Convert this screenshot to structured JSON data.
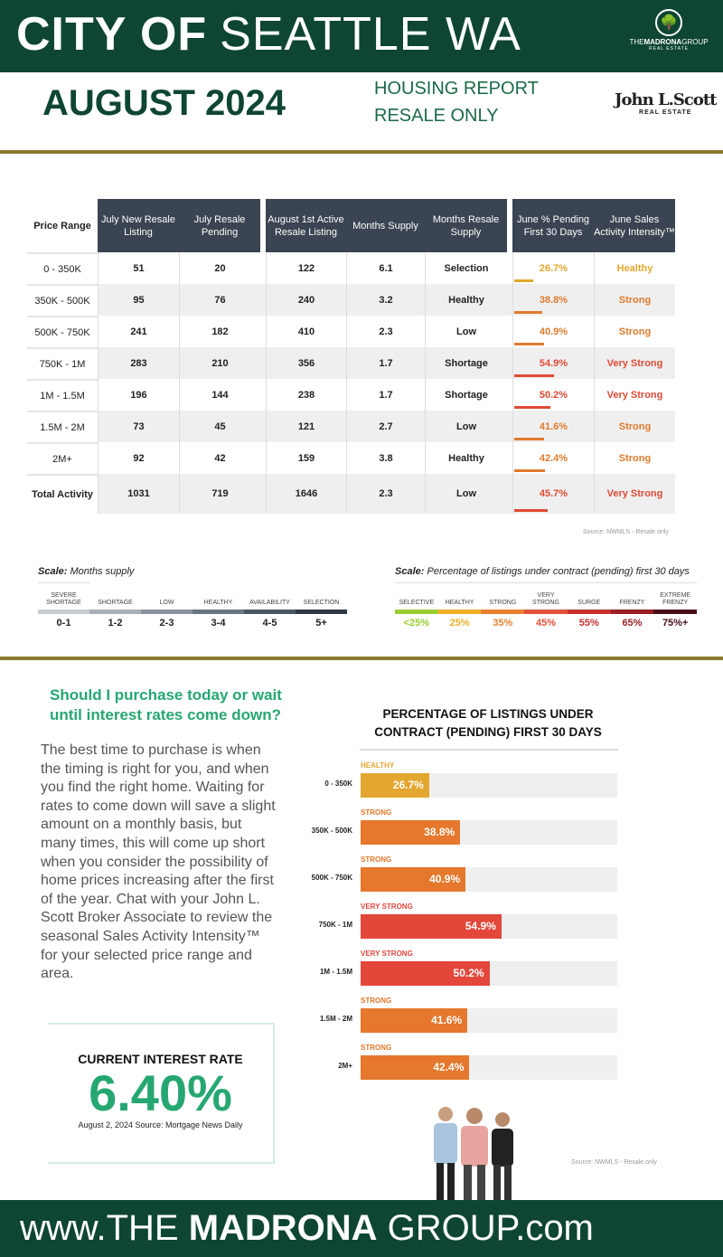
{
  "header": {
    "title_bold": "CITY OF",
    "title_light": "SEATTLE WA",
    "month": "AUGUST 2024",
    "sub1": "HOUSING REPORT",
    "sub2": "RESALE ONLY",
    "madrona_logo": {
      "name_thin": "THE",
      "name_bold": "MADRONA",
      "name_end": "GROUP",
      "tag": "REAL ESTATE"
    },
    "jls_logo": {
      "name": "John L.Scott",
      "tag": "REAL ESTATE"
    }
  },
  "table": {
    "headers": [
      "Price Range",
      "July New Resale Listing",
      "July Resale Pending",
      "August 1st Active Resale Listing",
      "Months Supply",
      "Months Resale Supply",
      "June % Pending First 30 Days",
      "June Sales Activity Intensity™"
    ],
    "rows": [
      {
        "range": "0 - 350K",
        "new": "51",
        "pending": "20",
        "active": "122",
        "months": "6.1",
        "supply": "Selection",
        "pct": "26.7%",
        "pct_value": 26.7,
        "intensity": "Healthy",
        "color": "#e0a82e"
      },
      {
        "range": "350K - 500K",
        "new": "95",
        "pending": "76",
        "active": "240",
        "months": "3.2",
        "supply": "Healthy",
        "pct": "38.8%",
        "pct_value": 38.8,
        "intensity": "Strong",
        "color": "#e07a2e"
      },
      {
        "range": "500K - 750K",
        "new": "241",
        "pending": "182",
        "active": "410",
        "months": "2.3",
        "supply": "Low",
        "pct": "40.9%",
        "pct_value": 40.9,
        "intensity": "Strong",
        "color": "#e07a2e"
      },
      {
        "range": "750K - 1M",
        "new": "283",
        "pending": "210",
        "active": "356",
        "months": "1.7",
        "supply": "Shortage",
        "pct": "54.9%",
        "pct_value": 54.9,
        "intensity": "Very Strong",
        "color": "#e04a35"
      },
      {
        "range": "1M - 1.5M",
        "new": "196",
        "pending": "144",
        "active": "238",
        "months": "1.7",
        "supply": "Shortage",
        "pct": "50.2%",
        "pct_value": 50.2,
        "intensity": "Very Strong",
        "color": "#e04a35"
      },
      {
        "range": "1.5M - 2M",
        "new": "73",
        "pending": "45",
        "active": "121",
        "months": "2.7",
        "supply": "Low",
        "pct": "41.6%",
        "pct_value": 41.6,
        "intensity": "Strong",
        "color": "#e07a2e"
      },
      {
        "range": "2M+",
        "new": "92",
        "pending": "42",
        "active": "159",
        "months": "3.8",
        "supply": "Healthy",
        "pct": "42.4%",
        "pct_value": 42.4,
        "intensity": "Strong",
        "color": "#e07a2e"
      },
      {
        "range": "Total Activity",
        "new": "1031",
        "pending": "719",
        "active": "1646",
        "months": "2.3",
        "supply": "Low",
        "pct": "45.7%",
        "pct_value": 45.7,
        "intensity": "Very Strong",
        "color": "#e04a35"
      }
    ],
    "source": "Source: NWMLS - Resale only"
  },
  "scale_months": {
    "title_bold": "Scale:",
    "title": "Months supply",
    "items": [
      {
        "label": "SEVERE SHORTAGE",
        "value": "0-1",
        "color": "#c8cdd2"
      },
      {
        "label": "SHORTAGE",
        "value": "1-2",
        "color": "#a9b0b8"
      },
      {
        "label": "LOW",
        "value": "2-3",
        "color": "#8a939c"
      },
      {
        "label": "HEALTHY",
        "value": "3-4",
        "color": "#6b7580"
      },
      {
        "label": "AVAILABILITY",
        "value": "4-5",
        "color": "#4c5663"
      },
      {
        "label": "SELECTION",
        "value": "5+",
        "color": "#2f3844"
      }
    ]
  },
  "scale_pct": {
    "title_bold": "Scale:",
    "title": "Percentage of listings under contract (pending) first 30 days",
    "items": [
      {
        "label": "SELECTIVE",
        "value": "<25%",
        "color": "#9acd32"
      },
      {
        "label": "HEALTHY",
        "value": "25%",
        "color": "#f0b02a"
      },
      {
        "label": "STRONG",
        "value": "35%",
        "color": "#e8812e"
      },
      {
        "label": "VERY STRONG",
        "value": "45%",
        "color": "#e2523a"
      },
      {
        "label": "SURGE",
        "value": "55%",
        "color": "#c8302e"
      },
      {
        "label": "FRENZY",
        "value": "65%",
        "color": "#9a1f24"
      },
      {
        "label": "EXTREME FRENZY",
        "value": "75%+",
        "color": "#4a0d1a"
      }
    ]
  },
  "article": {
    "question": "Should I purchase today or wait until interest rates come down?",
    "body": "The best time to purchase is when the timing is right for you, and when you find the right home. Waiting for rates to come down will save a slight amount on a monthly basis, but many times, this will come up short when you consider the possibility of home prices increasing after the first of the year. Chat with your John L. Scott Broker Associate to review the seasonal Sales Activity Intensity™ for your selected price range and area."
  },
  "interest": {
    "label": "CURRENT INTEREST RATE",
    "value": "6.40%",
    "source": "August 2, 2024 Source: Mortgage News Daily"
  },
  "chart_data": {
    "type": "bar",
    "orientation": "horizontal",
    "title": "PERCENTAGE OF LISTINGS UNDER CONTRACT (PENDING) FIRST 30 DAYS",
    "xlim": [
      0,
      100
    ],
    "categories": [
      "0 - 350K",
      "350K - 500K",
      "500K - 750K",
      "750K - 1M",
      "1M - 1.5M",
      "1.5M - 2M",
      "2M+"
    ],
    "values": [
      26.7,
      38.8,
      40.9,
      54.9,
      50.2,
      41.6,
      42.4
    ],
    "labels": [
      "26.7%",
      "38.8%",
      "40.9%",
      "54.9%",
      "50.2%",
      "41.6%",
      "42.4%"
    ],
    "bar_categories": [
      "HEALTHY",
      "STRONG",
      "STRONG",
      "VERY STRONG",
      "VERY STRONG",
      "STRONG",
      "STRONG"
    ],
    "colors": [
      "#e3a62f",
      "#e5782c",
      "#e5782c",
      "#e2473a",
      "#e2473a",
      "#e5782c",
      "#e5782c"
    ],
    "source": "Source: NWMLS - Resale only"
  },
  "footer": {
    "pre": "www.THE ",
    "bold": "MADRONA",
    "post": " GROUP.com"
  }
}
